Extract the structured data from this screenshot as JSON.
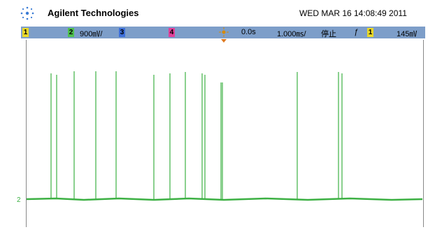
{
  "header": {
    "brand": "Agilent Technologies",
    "datetime": "WED MAR 16 14:08:49 2011"
  },
  "status": {
    "ch1": "1",
    "ch2": "2",
    "ch2_scale": "900㎷/",
    "ch3": "3",
    "ch4": "4",
    "time_offset": "0.0s",
    "time_scale": "1.000㎳/",
    "run_state": "停止",
    "trigger_slope": "ƒ",
    "trigger_source": "1",
    "trigger_level": "145㎷"
  },
  "trace": {
    "marker": "2"
  }
}
